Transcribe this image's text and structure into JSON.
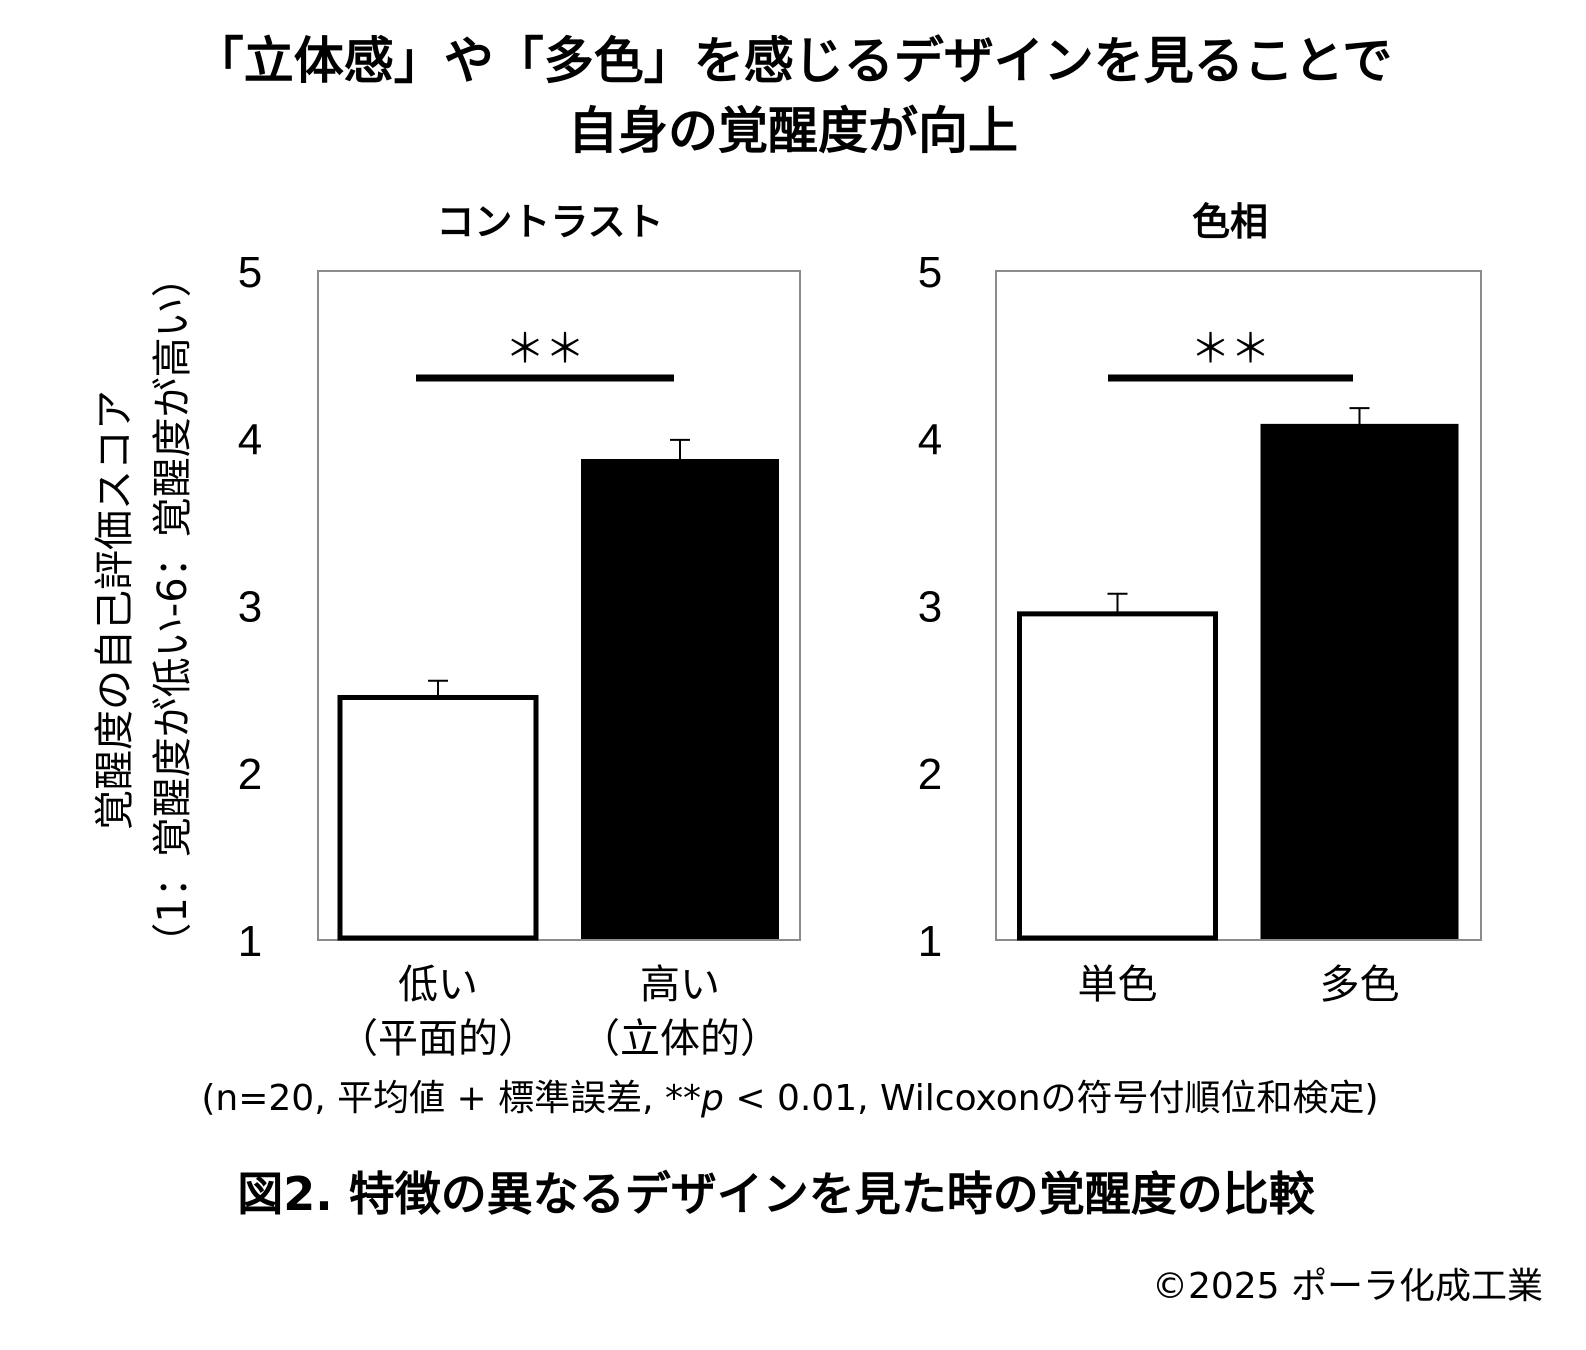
{
  "headline": {
    "line1": "「立体感」や「多色」を感じるデザインを見ることで",
    "line2": "自身の覚醒度が向上"
  },
  "y_axis": {
    "label_line1": "覚醒度の自己評価スコア",
    "label_line2": "（1：覚醒度が低い-6：覚醒度が高い）"
  },
  "chart_data": [
    {
      "type": "bar",
      "title": "コントラスト",
      "categories": [
        {
          "line1": "低い",
          "line2": "（平面的）"
        },
        {
          "line1": "高い",
          "line2": "（立体的）"
        }
      ],
      "values": [
        2.45,
        3.87
      ],
      "errors": [
        0.1,
        0.12
      ],
      "bar_colors": [
        "#ffffff",
        "#000000"
      ],
      "ylim": [
        1,
        5
      ],
      "yticks": [
        "1",
        "2",
        "3",
        "4",
        "5"
      ],
      "significance": "＊＊",
      "grid": false
    },
    {
      "type": "bar",
      "title": "色相",
      "categories": [
        {
          "line1": "単色",
          "line2": ""
        },
        {
          "line1": "多色",
          "line2": ""
        }
      ],
      "values": [
        2.95,
        4.08
      ],
      "errors": [
        0.12,
        0.1
      ],
      "bar_colors": [
        "#ffffff",
        "#000000"
      ],
      "ylim": [
        1,
        5
      ],
      "yticks": [
        "1",
        "2",
        "3",
        "4",
        "5"
      ],
      "significance": "＊＊",
      "grid": false
    }
  ],
  "footnote": {
    "before": "(n=20, 平均値 + 標準誤差, **",
    "p": "p",
    "after": " < 0.01, Wilcoxonの符号付順位和検定)"
  },
  "caption": "図2. 特徴の異なるデザインを見た時の覚醒度の比較",
  "copyright": "©2025  ポーラ化成工業"
}
